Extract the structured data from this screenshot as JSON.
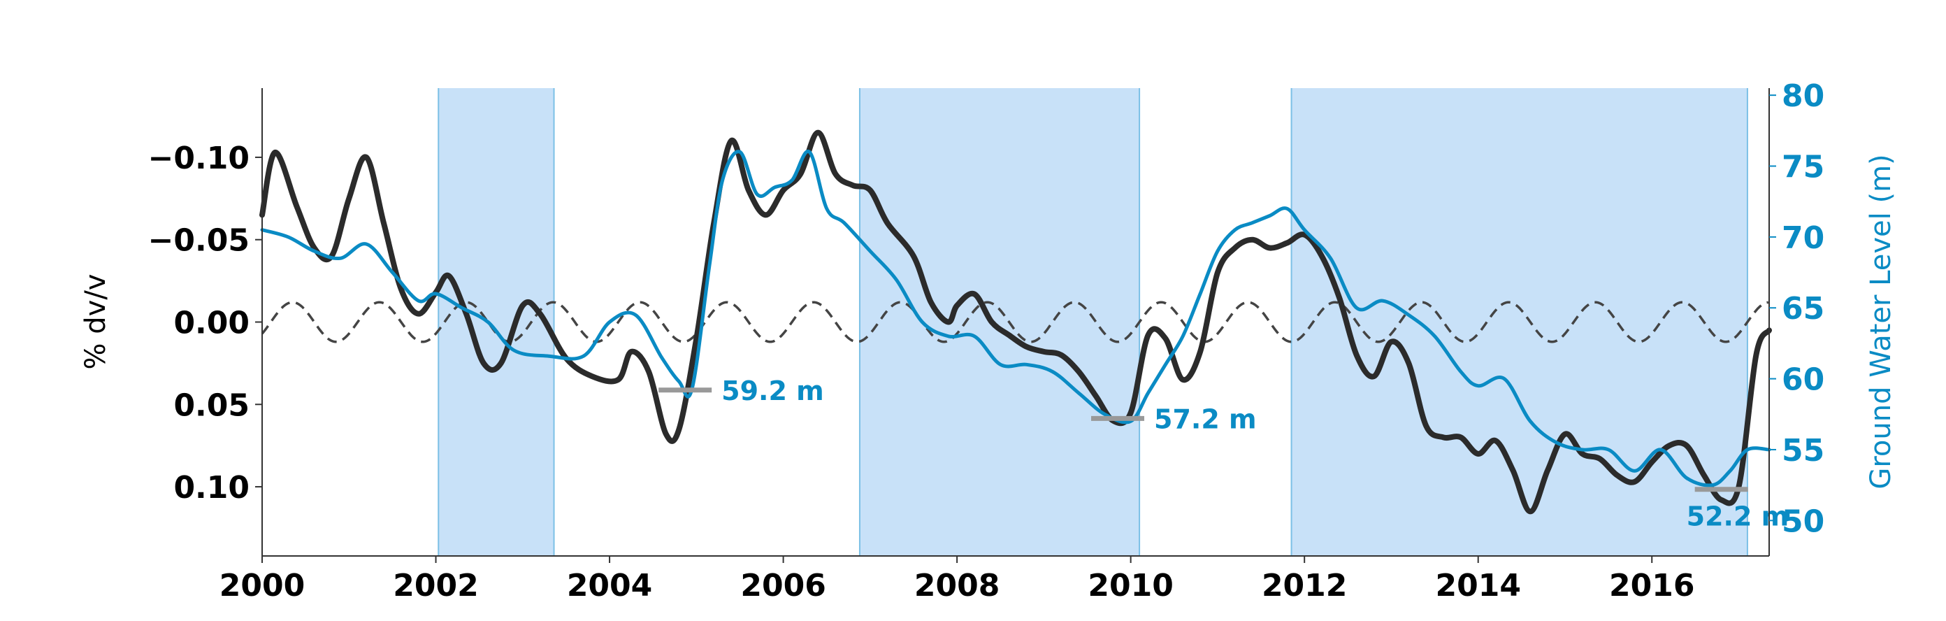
{
  "chart_data": {
    "type": "line",
    "title": "",
    "xlabel": "",
    "ylabel": "% dv/v",
    "ylabel_right": "Ground Water Level (m)",
    "xlim": [
      2000.0,
      2017.35
    ],
    "ylim": [
      0.142,
      -0.142
    ],
    "ylim_right": [
      47.5,
      80.5
    ],
    "x_ticks": [
      2000,
      2002,
      2004,
      2006,
      2008,
      2010,
      2012,
      2014,
      2016
    ],
    "x_tick_labels": [
      "2000",
      "2002",
      "2004",
      "2006",
      "2008",
      "2010",
      "2012",
      "2014",
      "2016"
    ],
    "y_ticks": [
      -0.1,
      -0.05,
      0.0,
      0.05,
      0.1
    ],
    "y_tick_labels": [
      "−0.10",
      "−0.05",
      "0.00",
      "0.05",
      "0.10"
    ],
    "y_ticks_right": [
      50,
      55,
      60,
      65,
      70,
      75,
      80
    ],
    "y_tick_labels_right": [
      "50",
      "55",
      "60",
      "65",
      "70",
      "75",
      "80"
    ],
    "colors": {
      "dvv": "#2b2b2b",
      "groundwater": "#0a8bc4",
      "seasonal": "#444444",
      "shading": "#c8e1f8",
      "shading_edge": "#7cc0e6",
      "marker": "#999999",
      "right_axis": "#0a8bc4"
    },
    "shaded_periods": [
      [
        2002.03,
        2003.36
      ],
      [
        2006.88,
        2010.1
      ],
      [
        2011.85,
        2017.1
      ]
    ],
    "series": [
      {
        "axis": "left",
        "style": "solid",
        "x": [
          2000.0,
          2000.15,
          2000.4,
          2000.6,
          2000.8,
          2001.0,
          2001.2,
          2001.4,
          2001.6,
          2001.8,
          2002.0,
          2002.15,
          2002.35,
          2002.55,
          2002.75,
          2003.0,
          2003.2,
          2003.5,
          2003.8,
          2004.1,
          2004.25,
          2004.45,
          2004.65,
          2004.8,
          2005.0,
          2005.2,
          2005.4,
          2005.6,
          2005.8,
          2006.0,
          2006.2,
          2006.4,
          2006.6,
          2006.8,
          2007.0,
          2007.2,
          2007.5,
          2007.7,
          2007.9,
          2008.0,
          2008.2,
          2008.4,
          2008.6,
          2008.8,
          2009.0,
          2009.2,
          2009.4,
          2009.6,
          2009.8,
          2010.0,
          2010.2,
          2010.4,
          2010.6,
          2010.8,
          2011.0,
          2011.2,
          2011.4,
          2011.6,
          2011.8,
          2012.0,
          2012.2,
          2012.4,
          2012.6,
          2012.8,
          2013.0,
          2013.2,
          2013.4,
          2013.6,
          2013.8,
          2014.0,
          2014.2,
          2014.4,
          2014.6,
          2014.8,
          2015.0,
          2015.2,
          2015.4,
          2015.6,
          2015.8,
          2016.0,
          2016.2,
          2016.4,
          2016.6,
          2016.8,
          2017.0,
          2017.2,
          2017.35
        ],
        "y": [
          -0.065,
          -0.103,
          -0.07,
          -0.045,
          -0.04,
          -0.075,
          -0.1,
          -0.06,
          -0.02,
          -0.005,
          -0.018,
          -0.028,
          -0.005,
          0.025,
          0.025,
          -0.01,
          -0.005,
          0.022,
          0.033,
          0.035,
          0.018,
          0.03,
          0.068,
          0.065,
          0.01,
          -0.06,
          -0.11,
          -0.08,
          -0.065,
          -0.08,
          -0.09,
          -0.115,
          -0.09,
          -0.083,
          -0.08,
          -0.06,
          -0.04,
          -0.012,
          0.0,
          -0.01,
          -0.017,
          0.0,
          0.008,
          0.015,
          0.018,
          0.02,
          0.03,
          0.045,
          0.06,
          0.055,
          0.008,
          0.01,
          0.035,
          0.018,
          -0.03,
          -0.045,
          -0.05,
          -0.045,
          -0.048,
          -0.053,
          -0.04,
          -0.015,
          0.02,
          0.033,
          0.012,
          0.025,
          0.063,
          0.07,
          0.07,
          0.08,
          0.072,
          0.09,
          0.115,
          0.09,
          0.068,
          0.08,
          0.083,
          0.093,
          0.097,
          0.085,
          0.075,
          0.075,
          0.093,
          0.108,
          0.1,
          0.02,
          0.005
        ]
      },
      {
        "axis": "right",
        "style": "solid",
        "x": [
          2000.0,
          2000.3,
          2000.6,
          2000.9,
          2001.2,
          2001.5,
          2001.8,
          2002.0,
          2002.3,
          2002.6,
          2002.9,
          2003.3,
          2003.7,
          2004.0,
          2004.3,
          2004.6,
          2004.8,
          2004.95,
          2005.15,
          2005.3,
          2005.5,
          2005.7,
          2005.9,
          2006.1,
          2006.3,
          2006.5,
          2006.7,
          2007.0,
          2007.3,
          2007.6,
          2007.9,
          2008.2,
          2008.5,
          2008.8,
          2009.1,
          2009.4,
          2009.7,
          2010.0,
          2010.2,
          2010.4,
          2010.6,
          2010.8,
          2011.0,
          2011.2,
          2011.4,
          2011.6,
          2011.8,
          2012.0,
          2012.3,
          2012.6,
          2012.9,
          2013.2,
          2013.5,
          2013.8,
          2014.0,
          2014.3,
          2014.6,
          2014.9,
          2015.2,
          2015.5,
          2015.8,
          2016.1,
          2016.4,
          2016.7,
          2016.9,
          2017.1,
          2017.35
        ],
        "y": [
          70.5,
          70.0,
          69.0,
          68.5,
          69.5,
          67.5,
          65.5,
          66.0,
          65.0,
          64.0,
          62.0,
          61.6,
          61.6,
          64.0,
          64.5,
          61.5,
          59.8,
          59.3,
          68.0,
          74.0,
          76.0,
          73.0,
          73.5,
          74.0,
          76.0,
          72.0,
          71.0,
          69.0,
          67.0,
          64.0,
          63.0,
          63.0,
          61.0,
          61.0,
          60.5,
          59.0,
          57.5,
          57.0,
          59.0,
          61.0,
          63.0,
          66.0,
          69.0,
          70.5,
          71.0,
          71.5,
          72.0,
          70.5,
          68.5,
          65.0,
          65.5,
          64.5,
          63.0,
          60.5,
          59.5,
          60.0,
          57.0,
          55.5,
          55.0,
          55.0,
          53.5,
          55.0,
          53.0,
          52.5,
          53.5,
          55.0,
          55.0
        ]
      },
      {
        "axis": "left",
        "style": "dashed",
        "amplitude": 0.012,
        "period_years": 1.0,
        "peak_x": 2000.35
      }
    ],
    "annotations": [
      {
        "text": "59.2 m",
        "x": 2004.87,
        "y": 59.2,
        "axis": "right"
      },
      {
        "text": "57.2 m",
        "x": 2009.85,
        "y": 57.2,
        "axis": "right"
      },
      {
        "text": "52.2 m",
        "x": 2016.8,
        "y": 52.2,
        "axis": "right"
      }
    ]
  }
}
